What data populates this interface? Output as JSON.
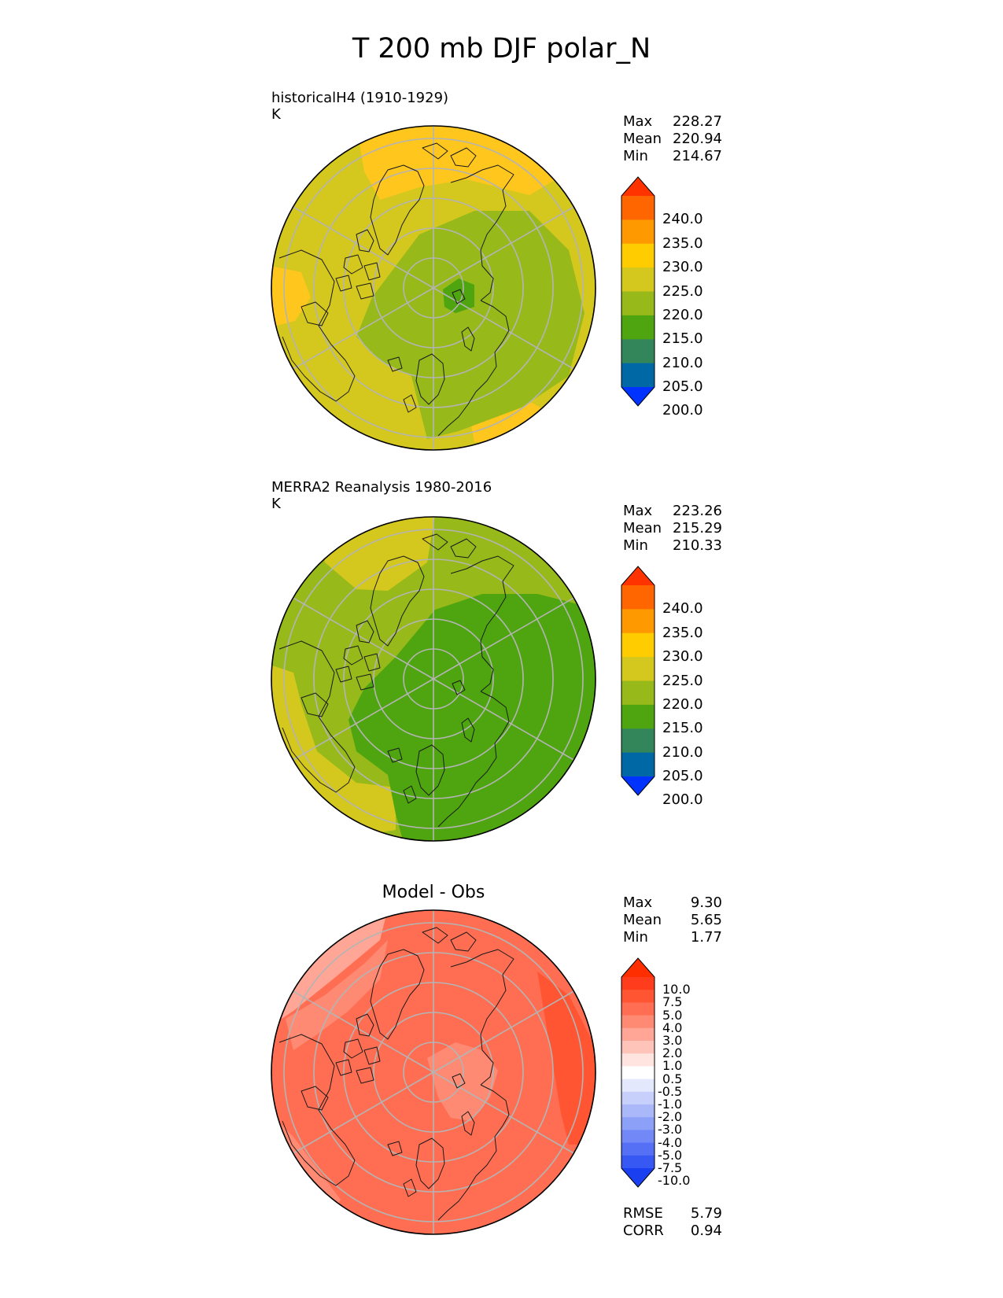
{
  "title": "T 200 mb DJF polar_N",
  "panels": [
    {
      "id": "test",
      "label": "historicalH4 (1910-1929)",
      "units": "K",
      "stats": [
        {
          "name": "Max",
          "value": "228.27"
        },
        {
          "name": "Mean",
          "value": "220.94"
        },
        {
          "name": "Min",
          "value": "214.67"
        }
      ],
      "colorbar": {
        "ticks": [
          "240.0",
          "235.0",
          "230.0",
          "225.0",
          "220.0",
          "215.0",
          "210.0",
          "205.0",
          "200.0"
        ],
        "colors": [
          "#ff3300",
          "#ff6600",
          "#ff9900",
          "#ffcc00",
          "#d4c81e",
          "#97b91a",
          "#4ea50f",
          "#338659",
          "#0068a4",
          "#0033ff"
        ]
      }
    },
    {
      "id": "reference",
      "label": "MERRA2 Reanalysis 1980-2016",
      "units": "K",
      "stats": [
        {
          "name": "Max",
          "value": "223.26"
        },
        {
          "name": "Mean",
          "value": "215.29"
        },
        {
          "name": "Min",
          "value": "210.33"
        }
      ],
      "colorbar": {
        "ticks": [
          "240.0",
          "235.0",
          "230.0",
          "225.0",
          "220.0",
          "215.0",
          "210.0",
          "205.0",
          "200.0"
        ],
        "colors": [
          "#ff3300",
          "#ff6600",
          "#ff9900",
          "#ffcc00",
          "#d4c81e",
          "#97b91a",
          "#4ea50f",
          "#338659",
          "#0068a4",
          "#0033ff"
        ]
      }
    },
    {
      "id": "diff",
      "title": "Model - Obs",
      "stats": [
        {
          "name": "Max",
          "value": "9.30"
        },
        {
          "name": "Mean",
          "value": "5.65"
        },
        {
          "name": "Min",
          "value": "1.77"
        }
      ],
      "extra_stats": [
        {
          "name": "RMSE",
          "value": "5.79"
        },
        {
          "name": "CORR",
          "value": "0.94"
        }
      ],
      "colorbar": {
        "ticks": [
          "10.0",
          "7.5",
          "5.0",
          "4.0",
          "3.0",
          "2.0",
          "1.0",
          "0.5",
          "-0.5",
          "-1.0",
          "-2.0",
          "-3.0",
          "-4.0",
          "-5.0",
          "-7.5",
          "-10.0"
        ],
        "colors": [
          "#ff2e00",
          "#ff3d1c",
          "#ff5533",
          "#ff6e52",
          "#ff8a73",
          "#ffa696",
          "#ffc4b9",
          "#ffe4e0",
          "#ffffff",
          "#e3e8fd",
          "#c6d0fb",
          "#aab8fa",
          "#8da0f8",
          "#7188f6",
          "#5570f5",
          "#3758f3",
          "#1a3ff1"
        ]
      }
    }
  ],
  "fields": {
    "test": {
      "base": "#d4c81e",
      "cold_core": "#97b91a",
      "center": "#4ea50f",
      "warm": "#ffc61e"
    },
    "reference": {
      "base": "#97b91a",
      "cold_core": "#4ea50f",
      "warm": "#d4c81e"
    },
    "diff": {
      "base": "#ff6e52",
      "warm": "#ff5533",
      "cool": "#ff8a73",
      "cool2": "#ffa696"
    }
  }
}
